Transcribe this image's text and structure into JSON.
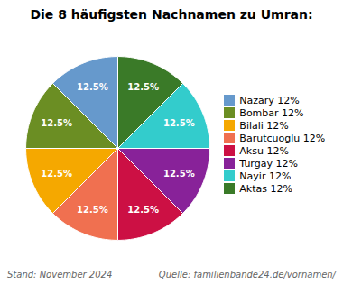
{
  "chart_data": {
    "type": "pie",
    "title": "Die 8 häufigsten Nachnamen zu Umran:",
    "categories": [
      "Nazary 12%",
      "Bombar 12%",
      "Bilali 12%",
      "Barutcuoglu 12%",
      "Aksu 12%",
      "Turgay 12%",
      "Nayir 12%",
      "Aktas 12%"
    ],
    "values": [
      12.5,
      12.5,
      12.5,
      12.5,
      12.5,
      12.5,
      12.5,
      12.5
    ],
    "value_labels": [
      "12.5%",
      "12.5%",
      "12.5%",
      "12.5%",
      "12.5%",
      "12.5%",
      "12.5%",
      "12.5%"
    ],
    "data_labels": true,
    "colors": [
      "#6699CC",
      "#6B8E23",
      "#F5A800",
      "#F07050",
      "#CC1044",
      "#882299",
      "#33CCCC",
      "#3A7A28"
    ],
    "legend": "right",
    "annotations": [
      "Stand: November 2024",
      "Quelle: familienbande24.de/vornamen/"
    ]
  }
}
